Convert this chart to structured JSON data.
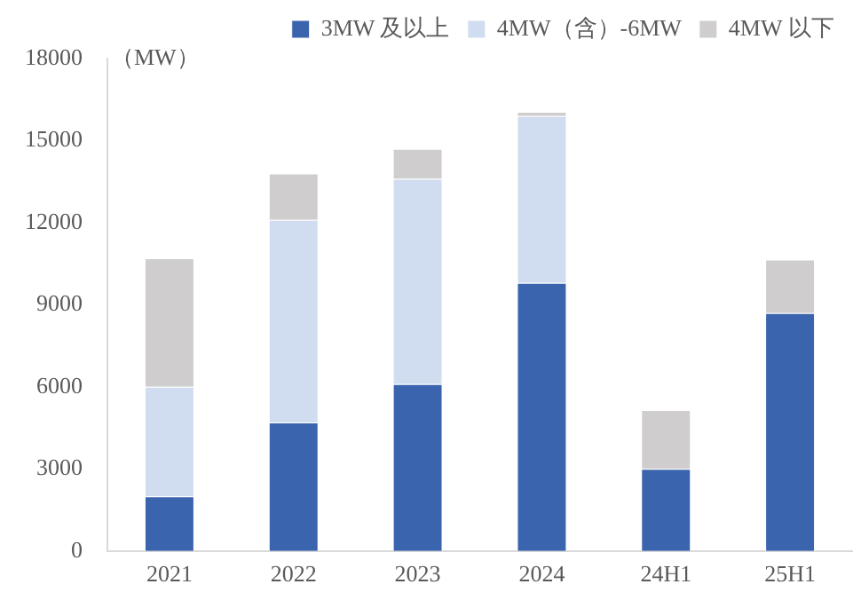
{
  "chart_data": {
    "type": "bar",
    "stacked": true,
    "ylabel": "（MW）",
    "categories": [
      "2021",
      "2022",
      "2023",
      "2024",
      "24H1",
      "25H1"
    ],
    "series": [
      {
        "name": "3MW 及以上",
        "color": "#3a64ae",
        "values": [
          2000,
          4700,
          6100,
          9800,
          3000,
          8700
        ]
      },
      {
        "name": "4MW（含）-6MW",
        "color": "#d0ddf0",
        "values": [
          4000,
          7400,
          7500,
          6100,
          0,
          0
        ]
      },
      {
        "name": "4MW 以下",
        "color": "#cfcdcd",
        "values": [
          4700,
          1700,
          1100,
          150,
          2150,
          1950
        ]
      }
    ],
    "ylim": [
      0,
      18000
    ],
    "yticks": [
      0,
      3000,
      6000,
      9000,
      12000,
      15000,
      18000
    ],
    "grid": false,
    "legend": "top"
  }
}
